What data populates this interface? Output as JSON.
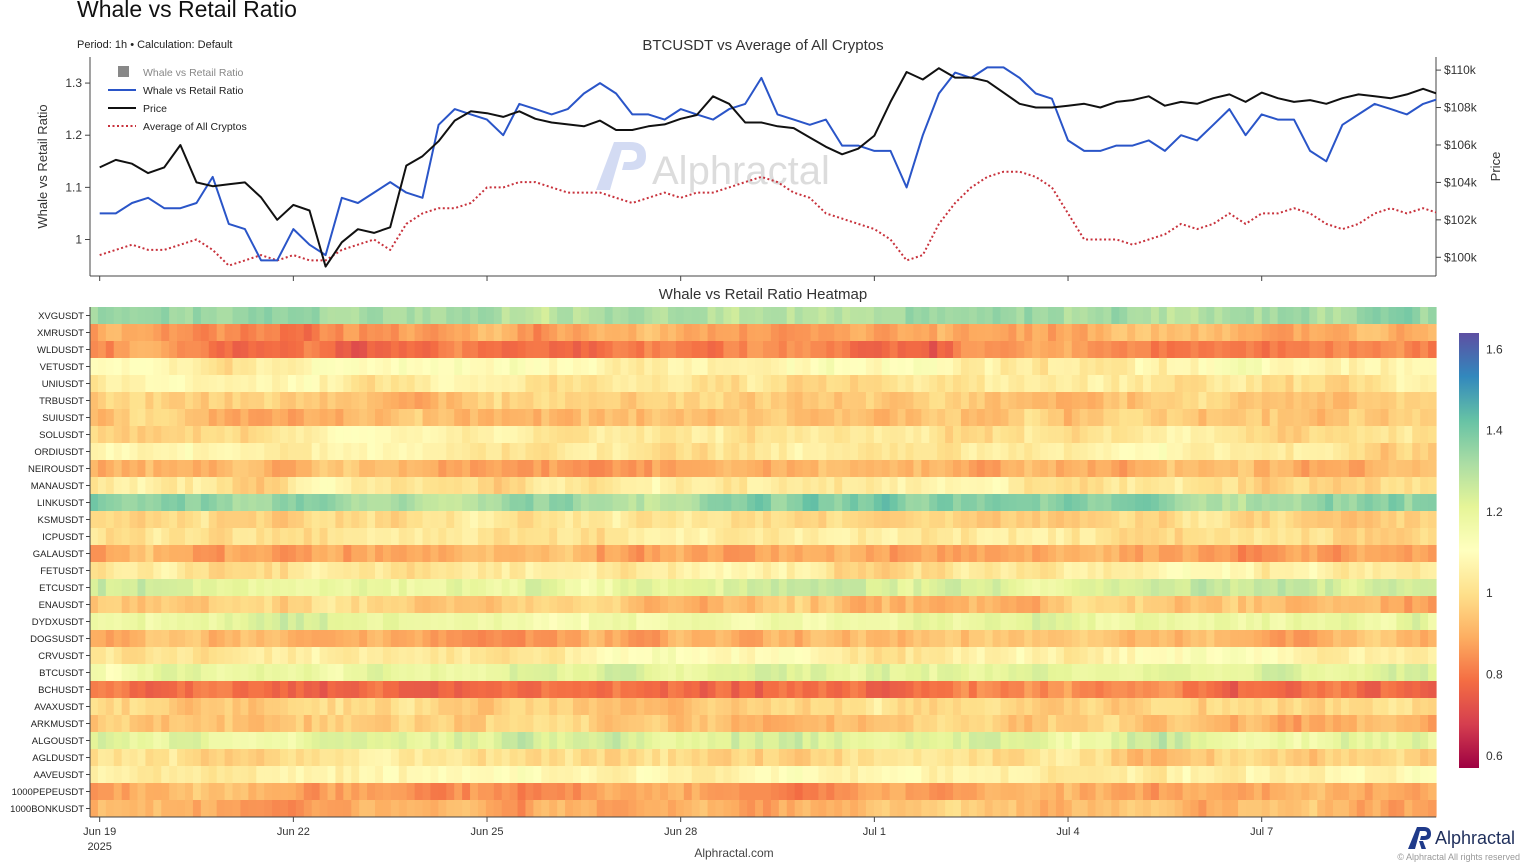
{
  "page": {
    "title": "Whale vs Retail Ratio",
    "subtitle": "Period: 1h • Calculation: Default",
    "footer": "Alphractal.com",
    "brand": "Alphractal",
    "copyright": "© Alphractal All rights reserved",
    "watermark": "Alphractal"
  },
  "colors": {
    "whale_line": "#2a55c8",
    "price_line": "#111111",
    "avg_line": "#c8323c",
    "legend_gray": "#888888",
    "brand_blue": "#1f3a8a"
  },
  "chart_data": [
    {
      "type": "line",
      "title": "BTCUSDT vs Average of All Cryptos",
      "ylabel": "Whale vs Retail Ratio",
      "y2label": "Price",
      "ylim": [
        0.93,
        1.35
      ],
      "y2lim": [
        99000,
        110700
      ],
      "yticks": [
        1,
        1.1,
        1.2,
        1.3
      ],
      "y2ticks": [
        100000,
        102000,
        104000,
        106000,
        108000,
        110000
      ],
      "y2ticklabels": [
        "$100k",
        "$102k",
        "$104k",
        "$106k",
        "$108k",
        "$110k"
      ],
      "xticks": [
        0,
        3,
        6,
        9,
        12,
        15,
        18
      ],
      "xticklabels": [
        "Jun 19",
        "Jun 22",
        "Jun 25",
        "Jun 28",
        "Jul 1",
        "Jul 4",
        "Jul 7"
      ],
      "xticksub": "2025",
      "xlim": [
        -0.15,
        20.7
      ],
      "legend": [
        "Whale vs Retail Ratio",
        "Whale vs Retail Ratio",
        "Price",
        "Average of All Cryptos"
      ],
      "legend_position": "top-left",
      "series": [
        {
          "name": "Whale vs Retail Ratio",
          "x": [
            0,
            0.25,
            0.5,
            0.75,
            1,
            1.25,
            1.5,
            1.75,
            2,
            2.25,
            2.5,
            2.75,
            3,
            3.25,
            3.5,
            3.75,
            4,
            4.25,
            4.5,
            4.75,
            5,
            5.25,
            5.5,
            5.75,
            6,
            6.25,
            6.5,
            6.75,
            7,
            7.25,
            7.5,
            7.75,
            8,
            8.25,
            8.5,
            8.75,
            9,
            9.25,
            9.5,
            9.75,
            10,
            10.25,
            10.5,
            10.75,
            11,
            11.25,
            11.5,
            11.75,
            12,
            12.25,
            12.5,
            12.75,
            13,
            13.25,
            13.5,
            13.75,
            14,
            14.25,
            14.5,
            14.75,
            15,
            15.25,
            15.5,
            15.75,
            16,
            16.25,
            16.5,
            16.75,
            17,
            17.25,
            17.5,
            17.75,
            18,
            18.25,
            18.5,
            18.75,
            19,
            19.25,
            19.5,
            19.75,
            20,
            20.25,
            20.5,
            20.75
          ],
          "y": [
            1.05,
            1.05,
            1.07,
            1.08,
            1.06,
            1.06,
            1.07,
            1.12,
            1.03,
            1.02,
            0.96,
            0.96,
            1.02,
            0.99,
            0.97,
            1.08,
            1.07,
            1.09,
            1.11,
            1.09,
            1.08,
            1.22,
            1.25,
            1.24,
            1.23,
            1.2,
            1.26,
            1.25,
            1.24,
            1.25,
            1.28,
            1.3,
            1.28,
            1.24,
            1.24,
            1.23,
            1.25,
            1.24,
            1.23,
            1.25,
            1.26,
            1.31,
            1.24,
            1.23,
            1.22,
            1.23,
            1.18,
            1.18,
            1.17,
            1.17,
            1.1,
            1.2,
            1.28,
            1.32,
            1.31,
            1.33,
            1.33,
            1.31,
            1.28,
            1.27,
            1.19,
            1.17,
            1.17,
            1.18,
            1.18,
            1.19,
            1.17,
            1.2,
            1.19,
            1.22,
            1.25,
            1.2,
            1.24,
            1.23,
            1.23,
            1.17,
            1.15,
            1.22,
            1.24,
            1.26,
            1.25,
            1.24,
            1.26,
            1.27
          ]
        },
        {
          "name": "Price",
          "x": [
            0,
            0.25,
            0.5,
            0.75,
            1,
            1.25,
            1.5,
            1.75,
            2,
            2.25,
            2.5,
            2.75,
            3,
            3.25,
            3.5,
            3.75,
            4,
            4.25,
            4.5,
            4.75,
            5,
            5.25,
            5.5,
            5.75,
            6,
            6.25,
            6.5,
            6.75,
            7,
            7.25,
            7.5,
            7.75,
            8,
            8.25,
            8.5,
            8.75,
            9,
            9.25,
            9.5,
            9.75,
            10,
            10.25,
            10.5,
            10.75,
            11,
            11.25,
            11.5,
            11.75,
            12,
            12.25,
            12.5,
            12.75,
            13,
            13.25,
            13.5,
            13.75,
            14,
            14.25,
            14.5,
            14.75,
            15,
            15.25,
            15.5,
            15.75,
            16,
            16.25,
            16.5,
            16.75,
            17,
            17.25,
            17.5,
            17.75,
            18,
            18.25,
            18.5,
            18.75,
            19,
            19.25,
            19.5,
            19.75,
            20,
            20.25,
            20.5,
            20.75
          ],
          "y": [
            104800,
            105200,
            105000,
            104500,
            104800,
            106000,
            104000,
            103800,
            103900,
            104000,
            103200,
            102000,
            102800,
            102500,
            99500,
            100800,
            101500,
            101300,
            101600,
            104900,
            105400,
            106200,
            107300,
            107800,
            107700,
            107500,
            107800,
            107400,
            107200,
            107100,
            107000,
            107300,
            106800,
            106800,
            107000,
            107100,
            107400,
            107600,
            108600,
            108200,
            107200,
            107200,
            107000,
            106900,
            106400,
            105900,
            105500,
            105800,
            106500,
            108300,
            109900,
            109500,
            110100,
            109600,
            109600,
            109400,
            108800,
            108200,
            108000,
            108000,
            108100,
            108200,
            108000,
            108300,
            108400,
            108600,
            108100,
            108300,
            108200,
            108500,
            108700,
            108300,
            108800,
            108500,
            108300,
            108400,
            108200,
            108500,
            108700,
            108600,
            108500,
            108700,
            109000,
            108700
          ]
        },
        {
          "name": "Average of All Cryptos",
          "x": [
            0,
            0.25,
            0.5,
            0.75,
            1,
            1.25,
            1.5,
            1.75,
            2,
            2.25,
            2.5,
            2.75,
            3,
            3.25,
            3.5,
            3.75,
            4,
            4.25,
            4.5,
            4.75,
            5,
            5.25,
            5.5,
            5.75,
            6,
            6.25,
            6.5,
            6.75,
            7,
            7.25,
            7.5,
            7.75,
            8,
            8.25,
            8.5,
            8.75,
            9,
            9.25,
            9.5,
            9.75,
            10,
            10.25,
            10.5,
            10.75,
            11,
            11.25,
            11.5,
            11.75,
            12,
            12.25,
            12.5,
            12.75,
            13,
            13.25,
            13.5,
            13.75,
            14,
            14.25,
            14.5,
            14.75,
            15,
            15.25,
            15.5,
            15.75,
            16,
            16.25,
            16.5,
            16.75,
            17,
            17.25,
            17.5,
            17.75,
            18,
            18.25,
            18.5,
            18.75,
            19,
            19.25,
            19.5,
            19.75,
            20,
            20.25,
            20.5,
            20.75
          ],
          "y": [
            0.97,
            0.98,
            0.99,
            0.98,
            0.98,
            0.99,
            1.0,
            0.98,
            0.95,
            0.96,
            0.97,
            0.96,
            0.97,
            0.96,
            0.96,
            0.98,
            0.99,
            1.0,
            0.98,
            1.03,
            1.05,
            1.06,
            1.06,
            1.07,
            1.1,
            1.1,
            1.11,
            1.11,
            1.1,
            1.09,
            1.09,
            1.09,
            1.08,
            1.07,
            1.08,
            1.09,
            1.08,
            1.09,
            1.09,
            1.1,
            1.11,
            1.12,
            1.11,
            1.09,
            1.08,
            1.05,
            1.04,
            1.03,
            1.02,
            1.0,
            0.96,
            0.97,
            1.03,
            1.07,
            1.1,
            1.12,
            1.13,
            1.13,
            1.12,
            1.1,
            1.05,
            1.0,
            1.0,
            1.0,
            0.99,
            1.0,
            1.01,
            1.03,
            1.02,
            1.03,
            1.05,
            1.03,
            1.05,
            1.05,
            1.06,
            1.05,
            1.03,
            1.02,
            1.03,
            1.05,
            1.06,
            1.05,
            1.06,
            1.05
          ]
        }
      ]
    },
    {
      "type": "heatmap",
      "title": "Whale vs Retail Ratio Heatmap",
      "rows": [
        "XVGUSDT",
        "XMRUSDT",
        "WLDUSDT",
        "VETUSDT",
        "UNIUSDT",
        "TRBUSDT",
        "SUIUSDT",
        "SOLUSDT",
        "ORDIUSDT",
        "NEIROUSDT",
        "MANAUSDT",
        "LINKUSDT",
        "KSMUSDT",
        "ICPUSDT",
        "GALAUSDT",
        "FETUSDT",
        "ETCUSDT",
        "ENAUSDT",
        "DYDXUSDT",
        "DOGSUSDT",
        "CRVUSDT",
        "BTCUSDT",
        "BCHUSDT",
        "AVAXUSDT",
        "ARKMUSDT",
        "ALGOUSDT",
        "AGLDUSDT",
        "AAVEUSDT",
        "1000PEPEUSDT",
        "1000BONKUSDT"
      ],
      "row_means": [
        1.32,
        0.87,
        0.82,
        1.08,
        1.02,
        0.96,
        0.93,
        1.0,
        1.04,
        0.91,
        1.02,
        1.36,
        0.99,
        1.02,
        0.88,
        1.03,
        1.24,
        0.94,
        1.18,
        0.92,
        1.05,
        1.2,
        0.78,
        0.98,
        0.95,
        1.22,
        0.99,
        1.06,
        0.88,
        0.92
      ],
      "colorbar_range": [
        0.57,
        1.64
      ],
      "colorbar_ticks": [
        0.6,
        0.8,
        1,
        1.2,
        1.4,
        1.6
      ],
      "colorscale": [
        "#9e0142",
        "#d53e4f",
        "#f46d43",
        "#fdae61",
        "#fee08b",
        "#ffffbf",
        "#e6f598",
        "#abdda4",
        "#66c2a5",
        "#3288bd",
        "#5e4fa2"
      ],
      "xticks": [
        0,
        3,
        6,
        9,
        12,
        15,
        18
      ],
      "xticklabels": [
        "Jun 19",
        "Jun 22",
        "Jun 25",
        "Jun 28",
        "Jul 1",
        "Jul 4",
        "Jul 7"
      ]
    }
  ]
}
